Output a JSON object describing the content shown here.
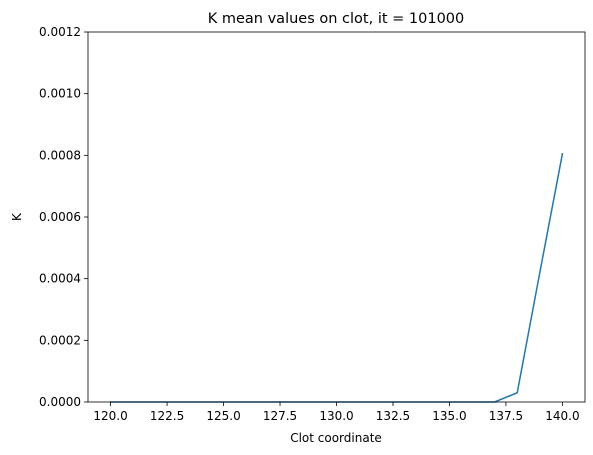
{
  "chart_data": {
    "type": "line",
    "title": "K mean values on clot, it = 101000",
    "xlabel": "Clot coordinate",
    "ylabel": "K",
    "xlim": [
      119.0,
      141.0
    ],
    "ylim": [
      0.0,
      0.0012
    ],
    "xticks": [
      120.0,
      122.5,
      125.0,
      127.5,
      130.0,
      132.5,
      135.0,
      137.5,
      140.0
    ],
    "xtick_labels": [
      "120.0",
      "122.5",
      "125.0",
      "127.5",
      "130.0",
      "132.5",
      "135.0",
      "137.5",
      "140.0"
    ],
    "yticks": [
      0.0,
      0.0002,
      0.0004,
      0.0006,
      0.0008,
      0.001,
      0.0012
    ],
    "ytick_labels": [
      "0.0000",
      "0.0002",
      "0.0004",
      "0.0006",
      "0.0008",
      "0.0010",
      "0.0012"
    ],
    "grid": false,
    "series": [
      {
        "color": "#1f77b4",
        "x": [
          120,
          121,
          122,
          123,
          124,
          125,
          126,
          127,
          128,
          129,
          130,
          131,
          132,
          133,
          134,
          135,
          136,
          137,
          138,
          139,
          140
        ],
        "y": [
          0,
          0,
          0,
          0,
          0,
          0,
          0,
          0,
          0,
          0,
          0,
          0,
          0,
          0,
          0,
          0,
          0,
          0,
          3e-05,
          0.00042,
          0.000805
        ]
      }
    ]
  }
}
